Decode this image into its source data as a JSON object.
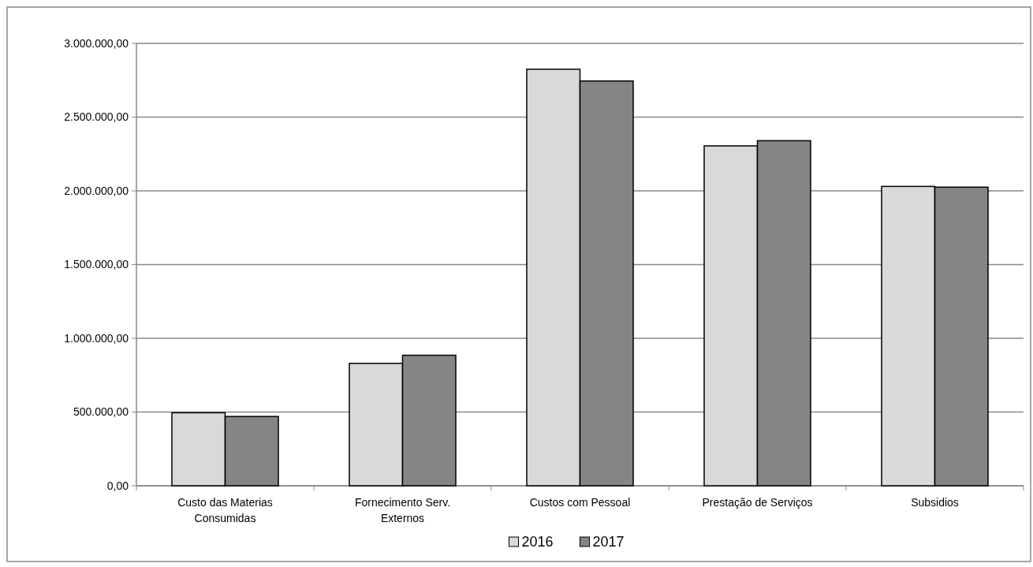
{
  "chart_data": {
    "type": "bar",
    "categories": [
      "Custo das Materias Consumidas",
      "Fornecimento Serv. Externos",
      "Custos com Pessoal",
      "Prestação de Serviços",
      "Subsidios"
    ],
    "series": [
      {
        "name": "2016",
        "color": "#d9d9d9",
        "values": [
          495000,
          830000,
          2825000,
          2305000,
          2030000
        ]
      },
      {
        "name": "2017",
        "color": "#858585",
        "values": [
          470000,
          885000,
          2745000,
          2340000,
          2025000
        ]
      }
    ],
    "ylim": [
      0,
      3000000
    ],
    "yticks": [
      {
        "value": 0,
        "label": "0,00"
      },
      {
        "value": 500000,
        "label": "500.000,00"
      },
      {
        "value": 1000000,
        "label": "1.000.000,00"
      },
      {
        "value": 1500000,
        "label": "1.500.000,00"
      },
      {
        "value": 2000000,
        "label": "2.000.000,00"
      },
      {
        "value": 2500000,
        "label": "2.500.000,00"
      },
      {
        "value": 3000000,
        "label": "3.000.000,00"
      }
    ],
    "grid": "y",
    "legend": "bottom"
  }
}
